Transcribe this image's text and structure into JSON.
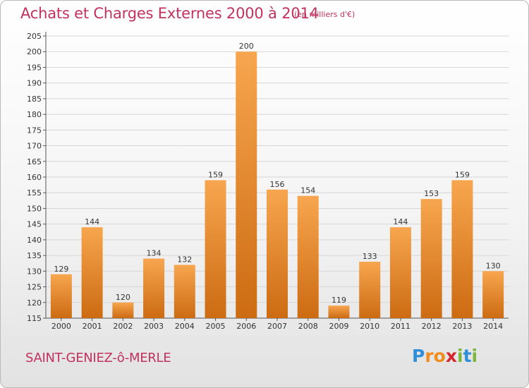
{
  "header": {
    "title": "Achats et Charges Externes 2000 à 2014",
    "subtitle": "(en milliers d'€)"
  },
  "footer": {
    "commune": "SAINT-GENIEZ-ô-MERLE",
    "logo_letters": [
      "P",
      "r",
      "o",
      "x",
      "i",
      "t",
      "i"
    ],
    "logo_colors": [
      "#2f8fd8",
      "#f08c1e",
      "#f08c1e",
      "#d8262e",
      "#7bb83a",
      "#2f8fd8",
      "#7bb83a"
    ]
  },
  "colors": {
    "bar_light": "#f7a64f",
    "bar_dark": "#cc6b12",
    "grid": "#d6d6d6"
  },
  "chart_data": {
    "type": "bar",
    "title": "Achats et Charges Externes 2000 à 2014",
    "subtitle": "(en milliers d'€)",
    "categories": [
      "2000",
      "2001",
      "2002",
      "2003",
      "2004",
      "2005",
      "2006",
      "2007",
      "2008",
      "2009",
      "2010",
      "2011",
      "2012",
      "2013",
      "2014"
    ],
    "values": [
      129,
      144,
      120,
      134,
      132,
      159,
      200,
      156,
      154,
      119,
      133,
      144,
      153,
      159,
      130
    ],
    "ylim": [
      115,
      205
    ],
    "yticks": [
      115,
      120,
      125,
      130,
      135,
      140,
      145,
      150,
      155,
      160,
      165,
      170,
      175,
      180,
      185,
      190,
      195,
      200,
      205
    ],
    "grid": true,
    "xlabel": "",
    "ylabel": ""
  }
}
